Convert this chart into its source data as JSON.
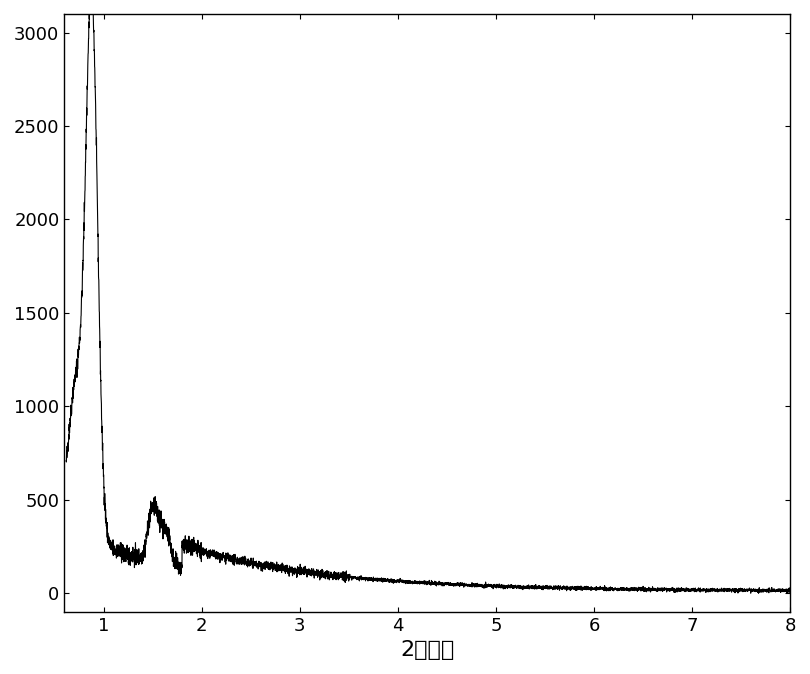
{
  "title": "",
  "xlabel": "2衍射角",
  "ylabel": "",
  "xlim": [
    0.6,
    8.0
  ],
  "ylim": [
    -100,
    3100
  ],
  "yticks": [
    0,
    500,
    1000,
    1500,
    2000,
    2500,
    3000
  ],
  "xticks": [
    1,
    2,
    3,
    4,
    5,
    6,
    7,
    8
  ],
  "line_color": "#000000",
  "background_color": "#ffffff",
  "xlabel_fontsize": 16,
  "tick_fontsize": 13
}
